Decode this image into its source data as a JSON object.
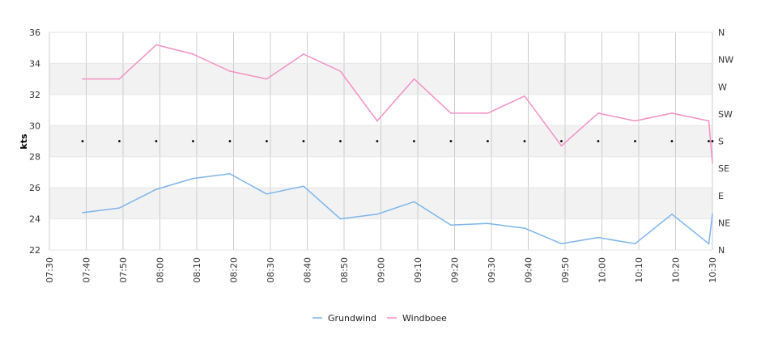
{
  "chart_data": {
    "type": "line",
    "ylabel": "kts",
    "ylim": [
      22,
      36
    ],
    "yticks": [
      "22",
      "24",
      "26",
      "28",
      "30",
      "32",
      "34",
      "36"
    ],
    "right_axis_labels": [
      "N",
      "NE",
      "E",
      "SE",
      "S",
      "SW",
      "W",
      "NW",
      "N"
    ],
    "x_tick_labels": [
      "07:30",
      "07:40",
      "07:50",
      "08:00",
      "08:10",
      "08:20",
      "08:30",
      "08:40",
      "08:50",
      "09:00",
      "09:10",
      "09:20",
      "09:30",
      "09:40",
      "09:50",
      "10:00",
      "10:10",
      "10:20",
      "10:30"
    ],
    "xlim": [
      "07:30",
      "10:30"
    ],
    "grid": true,
    "legend_position": "bottom-center",
    "series": [
      {
        "name": "Grundwind",
        "color": "#7cb5ec",
        "x": [
          "07:39",
          "07:49",
          "07:59",
          "08:09",
          "08:19",
          "08:29",
          "08:39",
          "08:49",
          "08:59",
          "09:09",
          "09:19",
          "09:29",
          "09:39",
          "09:49",
          "09:59",
          "10:09",
          "10:19",
          "10:29",
          "10:30"
        ],
        "values": [
          24.4,
          24.7,
          25.9,
          26.6,
          26.9,
          25.6,
          26.1,
          24.0,
          24.3,
          25.1,
          23.6,
          23.7,
          23.4,
          22.4,
          22.8,
          22.4,
          24.3,
          22.4,
          24.3
        ]
      },
      {
        "name": "Windboee",
        "color": "#f491c3",
        "x": [
          "07:39",
          "07:49",
          "07:59",
          "08:09",
          "08:19",
          "08:29",
          "08:39",
          "08:49",
          "08:59",
          "09:09",
          "09:19",
          "09:29",
          "09:39",
          "09:49",
          "09:59",
          "10:09",
          "10:19",
          "10:29",
          "10:30"
        ],
        "values": [
          33.0,
          33.0,
          35.2,
          34.6,
          33.5,
          33.0,
          34.6,
          33.5,
          30.3,
          33.0,
          30.8,
          30.8,
          31.9,
          28.7,
          30.8,
          30.3,
          30.8,
          30.3,
          27.6
        ]
      },
      {
        "name": "",
        "type": "scatter",
        "color": "#000000",
        "x": [
          "07:39",
          "07:49",
          "07:59",
          "08:09",
          "08:19",
          "08:29",
          "08:39",
          "08:49",
          "08:59",
          "09:09",
          "09:19",
          "09:29",
          "09:39",
          "09:49",
          "09:59",
          "10:09",
          "10:19",
          "10:29",
          "10:30"
        ],
        "values": [
          29,
          29,
          29,
          29,
          29,
          29,
          29,
          29,
          29,
          29,
          29,
          29,
          29,
          29,
          29,
          29,
          29,
          29,
          29
        ]
      }
    ]
  }
}
